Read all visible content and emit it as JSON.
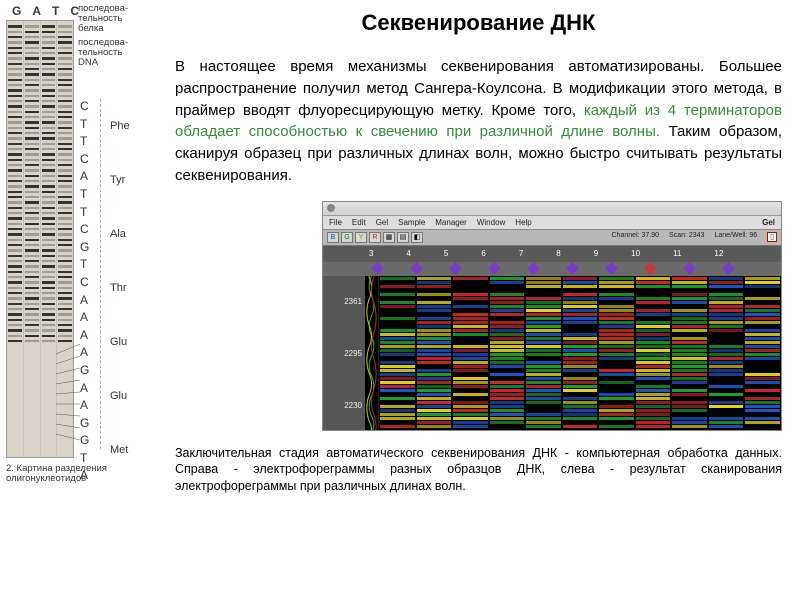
{
  "title": "Секвенирование ДНК",
  "paragraph_part1": "В настоящее время механизмы секвенирования автоматизированы. Большее распространение получил метод Сангера-Коулсона. В модификации этого метода, в праймер вводят флуоресцирующую метку. Кроме того, ",
  "paragraph_green": "каждый из 4 терминаторов обладает способностью к свечению при различной длине волны.",
  "paragraph_part2": " Таким образом, сканируя образец при различных длинах волн, можно быстро считывать результаты секвенирования.",
  "software": {
    "menubar": [
      "File",
      "Edit",
      "Gel",
      "Sample",
      "Manager",
      "Window",
      "Help"
    ],
    "window_label": "Gel",
    "channel_label": "Channel: 37.90",
    "scan_label": "Scan: 2343",
    "lane_label": "Lane/Well: 96",
    "header_numbers": [
      "3",
      "4",
      "5",
      "6",
      "7",
      "8",
      "9",
      "10",
      "11",
      "12"
    ],
    "diamond_colors": [
      "#7b39c7",
      "#7b39c7",
      "#7b39c7",
      "#7b39c7",
      "#7b39c7",
      "#7b39c7",
      "#7b39c7",
      "#c73939",
      "#7b39c7",
      "#7b39c7"
    ],
    "scale_values": [
      "2361",
      "2295",
      "2230"
    ],
    "band_palette": [
      "#e5d321",
      "#22a12b",
      "#1f55c7",
      "#c72a2a",
      "#000000"
    ]
  },
  "caption": "Заключительная стадия автоматического секвенирования ДНК - компьютерная обработка данных. Справа - электрофореграммы разных образцов ДНК, слева - результат сканирования электрофореграммы при различных длинах волн.",
  "left_figure": {
    "lane_labels": [
      "G",
      "A",
      "T",
      "C"
    ],
    "annot1": "последова-\nтельность\nбелка",
    "annot2": "последова-\nтельность\nDNA",
    "nucleotides": [
      "C",
      "T",
      "T",
      "C",
      "A",
      "T",
      "T",
      "C",
      "G",
      "T",
      "C",
      "A",
      "A",
      "A",
      "A",
      "G",
      "A",
      "A",
      "G",
      "G",
      "T",
      "A"
    ],
    "amino_acids": [
      "Phe",
      "Tyr",
      "Ala",
      "Thr",
      "Glu",
      "Glu",
      "Met"
    ],
    "fig_caption": "2. Картина разделения олигонуклеотидов"
  }
}
